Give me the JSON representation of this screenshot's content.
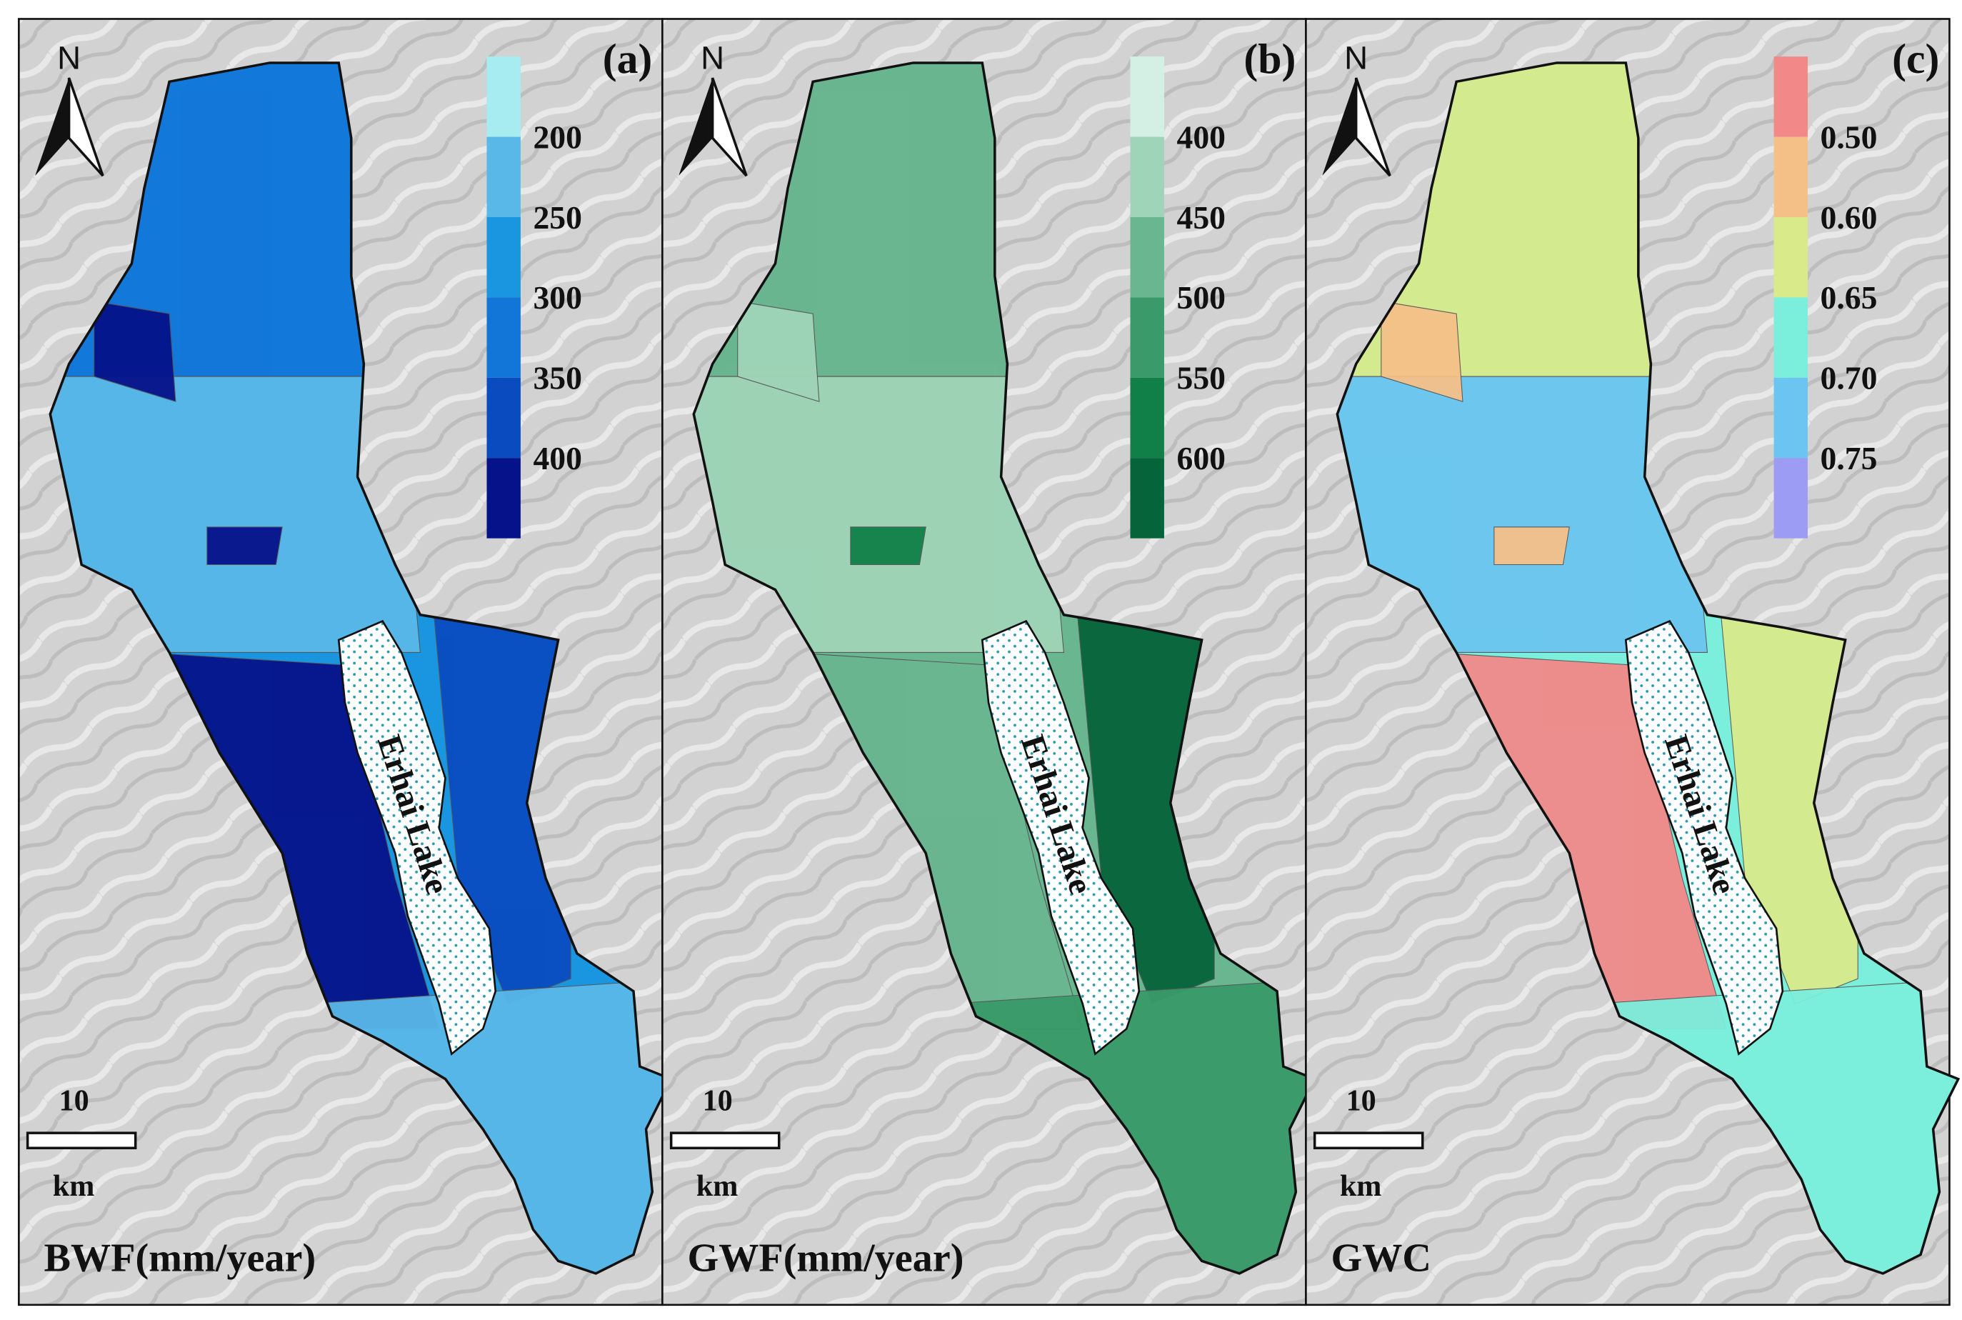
{
  "panels": [
    {
      "label": "(a)",
      "title": "BWF(mm/year)",
      "north": "N",
      "lake": "Erhai Lake",
      "scale": {
        "value": "10",
        "unit": "km"
      },
      "legend": {
        "labels": [
          "200",
          "250",
          "300",
          "350",
          "400"
        ],
        "colors": [
          "#a6ecf0",
          "#5ab8e8",
          "#1a96e0",
          "#1276d8",
          "#0a4cc0",
          "#06128a"
        ]
      }
    },
    {
      "label": "(b)",
      "title": "GWF(mm/year)",
      "north": "N",
      "lake": "Erhai Lake",
      "scale": {
        "value": "10",
        "unit": "km"
      },
      "legend": {
        "labels": [
          "400",
          "450",
          "500",
          "550",
          "600"
        ],
        "colors": [
          "#d4f0e4",
          "#a0d4b8",
          "#6ab690",
          "#3a9a6a",
          "#108048",
          "#06643a"
        ]
      }
    },
    {
      "label": "(c)",
      "title": "GWC",
      "north": "N",
      "lake": "Erhai Lake",
      "scale": {
        "value": "10",
        "unit": "km"
      },
      "legend": {
        "labels": [
          "0.50",
          "0.60",
          "0.65",
          "0.70",
          "0.75"
        ],
        "colors": [
          "#f28888",
          "#f4c088",
          "#d8ea8a",
          "#7ceedc",
          "#6cc4f0",
          "#9c9cf4"
        ]
      }
    }
  ]
}
